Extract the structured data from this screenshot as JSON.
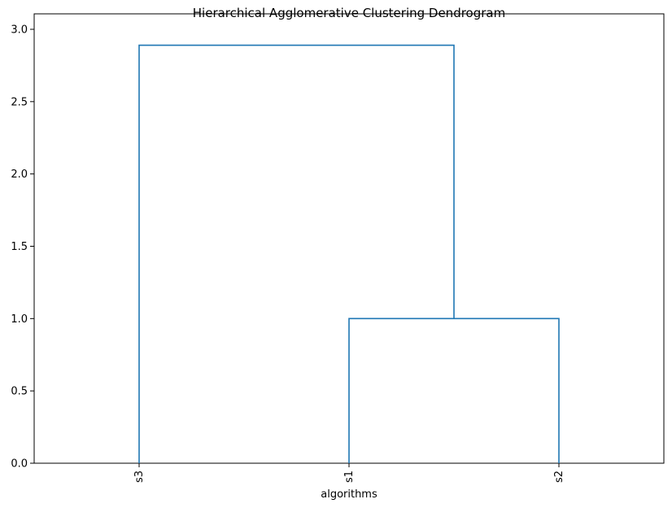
{
  "chart_data": {
    "type": "dendrogram",
    "title": "Hierarchical Agglomerative Clustering Dendrogram",
    "xlabel": "algorithms",
    "ylabel": "",
    "leaves": [
      "s3",
      "s1",
      "s2"
    ],
    "ylim": [
      0,
      3.0
    ],
    "yticks": [
      "0.0",
      "0.5",
      "1.0",
      "1.5",
      "2.0",
      "2.5",
      "3.0"
    ],
    "merges": [
      {
        "left": "s1",
        "right": "s2",
        "height": 1.0
      },
      {
        "left": "s3",
        "right": "s1+s2",
        "height": 2.89
      }
    ],
    "line_color": "#1f77b4",
    "grid": false,
    "legend": "none"
  }
}
